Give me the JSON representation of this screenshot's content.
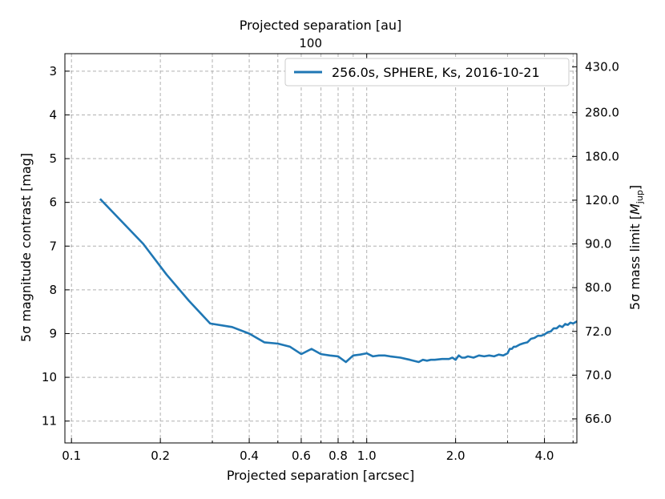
{
  "chart_data": {
    "type": "line",
    "title": "",
    "xlabel": "Projected separation [arcsec]",
    "ylabel": "5σ magnitude contrast [mag]",
    "x2label": "Projected separation [au]",
    "y2label": "5σ mass limit [M_jup]",
    "xscale": "log",
    "xlim": [
      0.095,
      5.15
    ],
    "ylim": [
      11.5,
      2.6
    ],
    "x_major_ticks": [
      {
        "value": 0.1,
        "label": "0.1"
      },
      {
        "value": 0.2,
        "label": "0.2"
      },
      {
        "value": 0.4,
        "label": "0.4"
      },
      {
        "value": 0.6,
        "label": "0.6"
      },
      {
        "value": 0.8,
        "label": "0.8"
      },
      {
        "value": 1.0,
        "label": "1.0"
      },
      {
        "value": 2.0,
        "label": "2.0"
      },
      {
        "value": 4.0,
        "label": "4.0"
      }
    ],
    "x_minor_ticks": [
      0.3,
      0.5,
      0.7,
      0.9,
      3.0,
      5.0
    ],
    "y_ticks": [
      3,
      4,
      5,
      6,
      7,
      8,
      9,
      10,
      11
    ],
    "x2_ticks": [
      {
        "value": 1.0,
        "label": "100"
      }
    ],
    "y2_ticks": [
      {
        "at_mag": 2.9,
        "label": "430.0"
      },
      {
        "at_mag": 3.95,
        "label": "280.0"
      },
      {
        "at_mag": 4.95,
        "label": "180.0"
      },
      {
        "at_mag": 5.95,
        "label": "120.0"
      },
      {
        "at_mag": 6.95,
        "label": "90.0"
      },
      {
        "at_mag": 7.95,
        "label": "80.0"
      },
      {
        "at_mag": 8.95,
        "label": "72.0"
      },
      {
        "at_mag": 9.95,
        "label": "70.0"
      },
      {
        "at_mag": 10.95,
        "label": "66.0"
      }
    ],
    "grid": true,
    "legend_position": "top-right",
    "series": [
      {
        "name": "256.0s, SPHERE, Ks, 2016-10-21",
        "color": "#1f77b4",
        "x": [
          0.125,
          0.175,
          0.21,
          0.25,
          0.295,
          0.35,
          0.4,
          0.45,
          0.5,
          0.55,
          0.6,
          0.65,
          0.7,
          0.75,
          0.8,
          0.85,
          0.9,
          0.95,
          1.0,
          1.05,
          1.1,
          1.15,
          1.2,
          1.3,
          1.4,
          1.5,
          1.55,
          1.6,
          1.65,
          1.7,
          1.8,
          1.9,
          1.95,
          2.0,
          2.05,
          2.1,
          2.15,
          2.2,
          2.3,
          2.4,
          2.5,
          2.6,
          2.7,
          2.8,
          2.9,
          3.0,
          3.05,
          3.1,
          3.15,
          3.2,
          3.3,
          3.4,
          3.5,
          3.6,
          3.7,
          3.8,
          3.9,
          4.0,
          4.1,
          4.2,
          4.3,
          4.4,
          4.5,
          4.6,
          4.7,
          4.8,
          4.9,
          5.0,
          5.15
        ],
        "y": [
          5.92,
          6.95,
          7.65,
          8.25,
          8.77,
          8.85,
          9.0,
          9.2,
          9.23,
          9.3,
          9.47,
          9.35,
          9.47,
          9.5,
          9.52,
          9.65,
          9.5,
          9.48,
          9.45,
          9.52,
          9.5,
          9.5,
          9.52,
          9.55,
          9.6,
          9.65,
          9.6,
          9.62,
          9.6,
          9.6,
          9.58,
          9.58,
          9.55,
          9.6,
          9.5,
          9.55,
          9.55,
          9.52,
          9.55,
          9.5,
          9.52,
          9.5,
          9.52,
          9.48,
          9.5,
          9.45,
          9.35,
          9.35,
          9.3,
          9.3,
          9.25,
          9.22,
          9.2,
          9.12,
          9.1,
          9.05,
          9.05,
          9.02,
          8.97,
          8.95,
          8.88,
          8.88,
          8.82,
          8.85,
          8.78,
          8.8,
          8.75,
          8.77,
          8.72
        ]
      }
    ]
  }
}
